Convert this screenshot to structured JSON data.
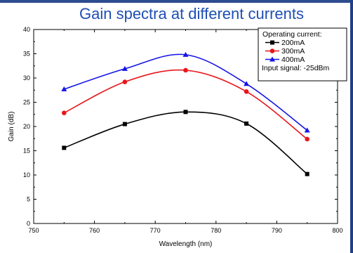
{
  "chart_data": {
    "type": "line",
    "title": "Gain spectra at different currents",
    "xlabel": "Wavelength (nm)",
    "ylabel": "Gain (dB)",
    "xlim": [
      750,
      800
    ],
    "ylim": [
      0,
      40
    ],
    "xticks": [
      "750",
      "760",
      "770",
      "780",
      "790",
      "800"
    ],
    "yticks": [
      "0",
      "5",
      "10",
      "15",
      "20",
      "25",
      "30",
      "35",
      "40"
    ],
    "x": [
      755,
      765,
      775,
      785,
      795
    ],
    "series": [
      {
        "name": "200mA",
        "color": "#000000",
        "marker": "square",
        "values": [
          15.6,
          20.5,
          23.0,
          20.6,
          10.2
        ]
      },
      {
        "name": "300mA",
        "color": "#e8161b",
        "marker": "circle",
        "values": [
          22.8,
          29.2,
          31.6,
          27.2,
          17.4
        ]
      },
      {
        "name": "400mA",
        "color": "#1414e6",
        "marker": "triangle",
        "values": [
          27.7,
          31.9,
          34.8,
          28.8,
          19.2
        ]
      }
    ],
    "legend": {
      "position": "top-right",
      "header": "Operating current:",
      "footer": "Input signal: -25dBm"
    },
    "grid": false,
    "line_style": "smooth"
  }
}
